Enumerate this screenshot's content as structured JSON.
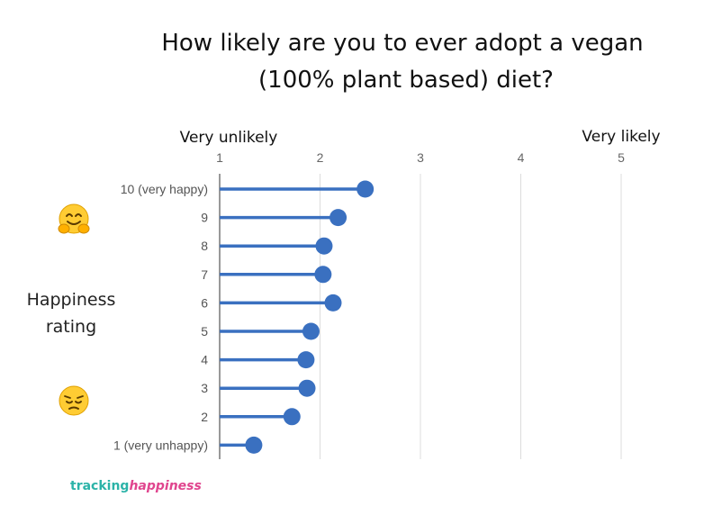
{
  "chart_data": {
    "type": "lollipop",
    "title_lines": [
      "How likely are you to ever adopt a vegan",
      "(100% plant based) diet?"
    ],
    "ylabel_lines": [
      "Happiness",
      "rating"
    ],
    "x_axis": {
      "min": 1,
      "max": 5,
      "ticks": [
        1,
        2,
        3,
        4,
        5
      ],
      "low_label": "Very unlikely",
      "high_label": "Very likely"
    },
    "categories": [
      "10 (very happy)",
      "9",
      "8",
      "7",
      "6",
      "5",
      "4",
      "3",
      "2",
      "1 (very unhappy)"
    ],
    "values": [
      2.45,
      2.18,
      2.04,
      2.03,
      2.13,
      1.91,
      1.86,
      1.87,
      1.72,
      1.34
    ],
    "color": "#3a70c0",
    "grid": true
  },
  "emojis": {
    "top": "hugging-face",
    "bottom": "pensive-face"
  },
  "branding": {
    "part1": "tracking",
    "part2": "happiness"
  }
}
